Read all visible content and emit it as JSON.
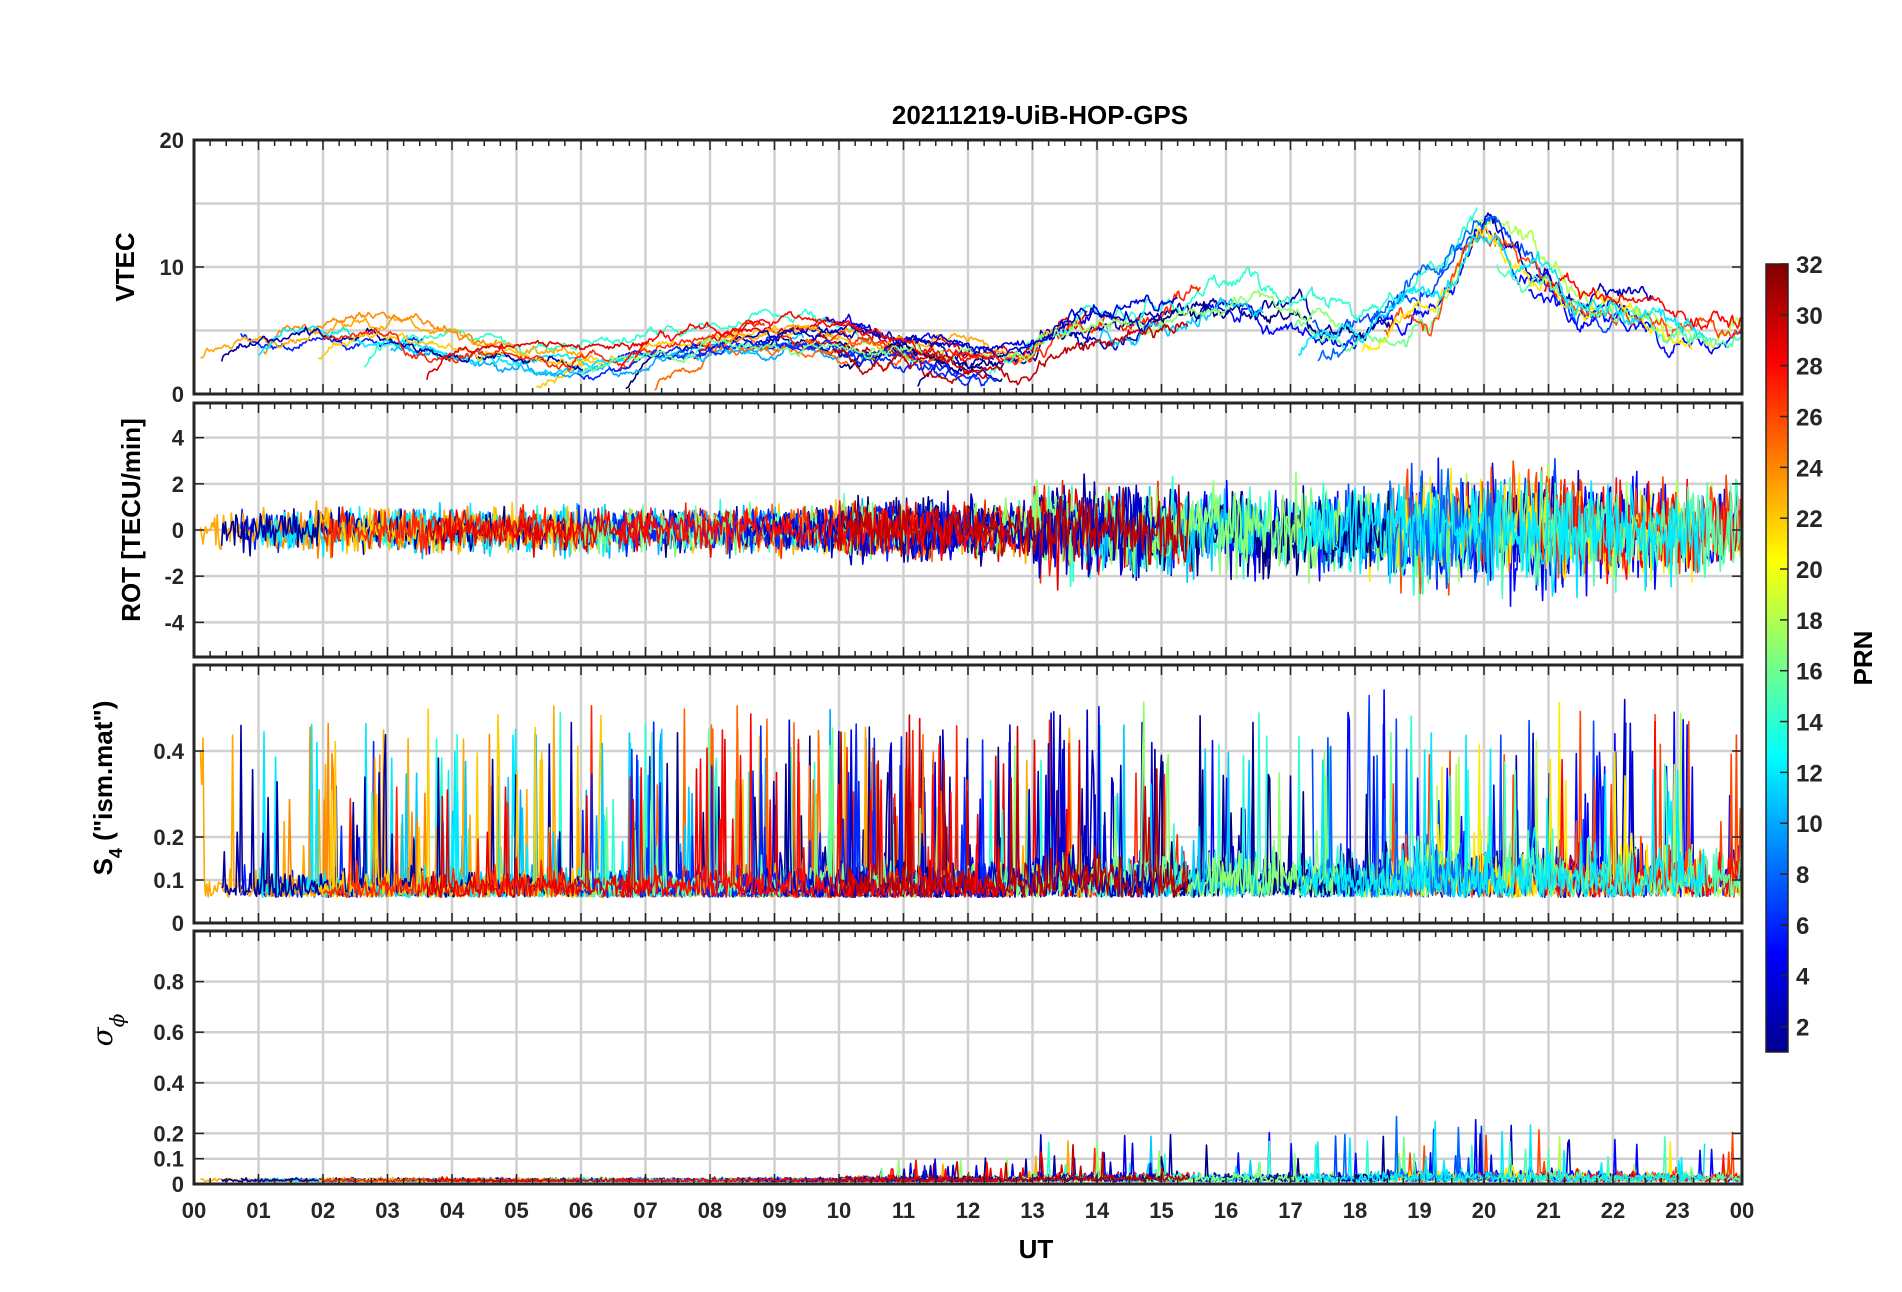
{
  "chart_data": {
    "type": "line",
    "title": "20211219-UiB-HOP-GPS",
    "xlabel": "UT",
    "x_ticks": [
      "00",
      "01",
      "02",
      "03",
      "04",
      "05",
      "06",
      "07",
      "08",
      "09",
      "10",
      "11",
      "12",
      "13",
      "14",
      "15",
      "16",
      "17",
      "18",
      "19",
      "20",
      "21",
      "22",
      "23",
      "00"
    ],
    "xlim": [
      0,
      24
    ],
    "colorbar": {
      "label": "PRN",
      "range": [
        1,
        32
      ],
      "ticks": [
        "2",
        "4",
        "6",
        "8",
        "10",
        "12",
        "14",
        "16",
        "18",
        "20",
        "22",
        "24",
        "26",
        "28",
        "30",
        "32"
      ],
      "colormap": "jet"
    },
    "panels": [
      {
        "id": "vtec",
        "ylabel": "VTEC",
        "ylim": [
          0,
          20
        ],
        "y_ticks": [
          {
            "v": 0,
            "t": "0"
          },
          {
            "v": 10,
            "t": "10"
          },
          {
            "v": 20,
            "t": "20"
          }
        ],
        "y_grid": [
          0,
          5,
          10,
          15,
          20
        ]
      },
      {
        "id": "rot",
        "ylabel": "ROT [TECU/min]",
        "ylim": [
          -5.5,
          5.5
        ],
        "y_ticks": [
          {
            "v": -4,
            "t": "-4"
          },
          {
            "v": -2,
            "t": "-2"
          },
          {
            "v": 0,
            "t": "0"
          },
          {
            "v": 2,
            "t": "2"
          },
          {
            "v": 4,
            "t": "4"
          }
        ],
        "y_grid": [
          -4,
          -2,
          0,
          2,
          4
        ]
      },
      {
        "id": "s4",
        "ylabel_main": "S",
        "ylabel_sub": "4",
        "ylabel_rest": " (\"ism.mat\")",
        "ylim": [
          0,
          0.6
        ],
        "y_ticks": [
          {
            "v": 0,
            "t": "0"
          },
          {
            "v": 0.1,
            "t": "0.1"
          },
          {
            "v": 0.2,
            "t": "0.2"
          },
          {
            "v": 0.4,
            "t": "0.4"
          }
        ],
        "y_grid": [
          0,
          0.1,
          0.2,
          0.4
        ]
      },
      {
        "id": "sigma",
        "ylabel_main": "σ",
        "ylabel_sub": "ϕ",
        "ylim": [
          0,
          1
        ],
        "y_ticks": [
          {
            "v": 0,
            "t": "0"
          },
          {
            "v": 0.1,
            "t": "0.1"
          },
          {
            "v": 0.2,
            "t": "0.2"
          },
          {
            "v": 0.4,
            "t": "0.4"
          },
          {
            "v": 0.6,
            "t": "0.6"
          },
          {
            "v": 0.8,
            "t": "0.8"
          }
        ],
        "y_grid": [
          0,
          0.1,
          0.2,
          0.4,
          0.6,
          0.8
        ]
      }
    ]
  }
}
